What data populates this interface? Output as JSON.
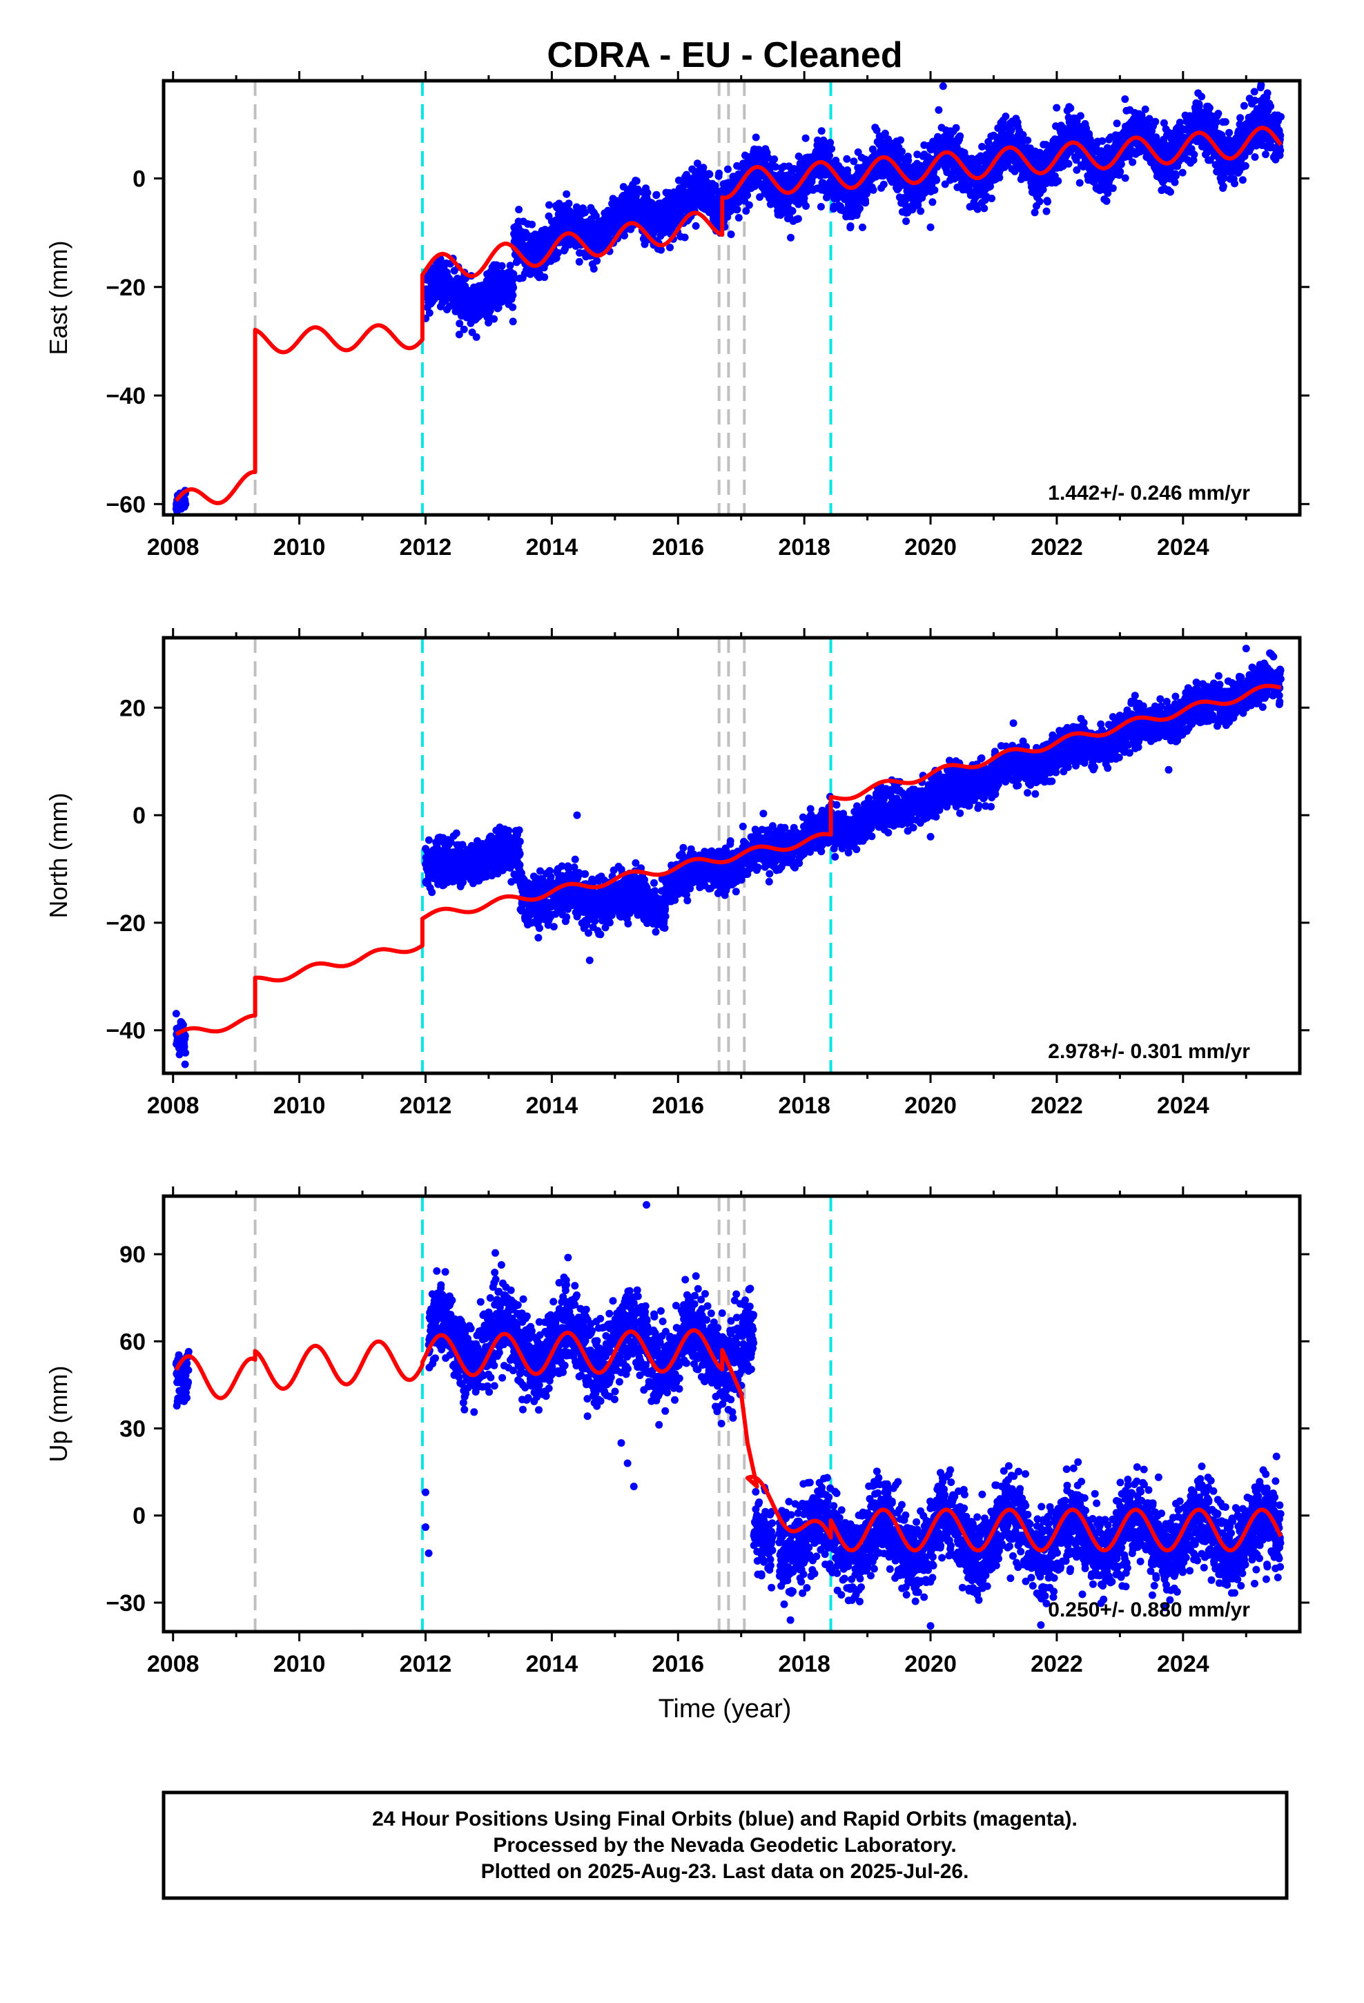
{
  "title": "CDRA  - EU - Cleaned",
  "xlabel": "Time (year)",
  "footer": [
    "24 Hour Positions Using Final Orbits (blue) and Rapid Orbits (magenta).",
    "Processed by the Nevada Geodetic Laboratory.",
    "Plotted on 2025-Aug-23. Last data on 2025-Jul-26."
  ],
  "colors": {
    "points": "#0000ff",
    "model": "#ff0000",
    "equipment_change": "#c0c0c0",
    "earthquake": "#00e5e5"
  },
  "chart_data": [
    {
      "type": "scatter",
      "ylabel": "East (mm)",
      "rate_label": "1.442+/- 0.246 mm/yr",
      "xlim": [
        2007.85,
        2025.85
      ],
      "ylim": [
        -62,
        18
      ],
      "xticks": [
        2008,
        2010,
        2012,
        2014,
        2016,
        2018,
        2020,
        2022,
        2024
      ],
      "yticks": [
        -60,
        -40,
        -20,
        0
      ],
      "grey_lines": [
        2009.3,
        2016.65,
        2016.8,
        2017.05
      ],
      "cyan_lines": [
        2011.95,
        2018.42
      ],
      "data_segments": [
        {
          "x0": 2008.05,
          "x1": 2008.2,
          "y0": -60,
          "y1": -59,
          "noise": 1.0,
          "amp": 0.5
        },
        {
          "x0": 2012.0,
          "x1": 2013.4,
          "y0": -21,
          "y1": -22,
          "noise": 2.0,
          "amp": 2.0
        },
        {
          "x0": 2013.4,
          "x1": 2016.7,
          "y0": -13,
          "y1": -3,
          "noise": 2.2,
          "amp": 2.0
        },
        {
          "x0": 2016.7,
          "x1": 2025.55,
          "y0": -2,
          "y1": 8,
          "noise": 2.4,
          "amp": 3.0
        }
      ],
      "model_segments": [
        {
          "x0": 2008.05,
          "x1": 2009.3,
          "y0": -60,
          "y1": -56,
          "amp": 2.0
        },
        {
          "x0": 2009.3,
          "x1": 2011.95,
          "y0": -30,
          "y1": -29,
          "amp": 2.2
        },
        {
          "x0": 2011.95,
          "x1": 2016.7,
          "y0": -17,
          "y1": -8,
          "amp": 2.5
        },
        {
          "x0": 2016.7,
          "x1": 2025.55,
          "y0": -1,
          "y1": 7,
          "amp": 2.6
        }
      ],
      "outliers": [
        [
          2020.2,
          17
        ],
        [
          2020.0,
          -9
        ],
        [
          2023.2,
          3
        ],
        [
          2016.4,
          2
        ]
      ]
    },
    {
      "type": "scatter",
      "ylabel": "North (mm)",
      "rate_label": "2.978+/- 0.301 mm/yr",
      "xlim": [
        2007.85,
        2025.85
      ],
      "ylim": [
        -48,
        33
      ],
      "xticks": [
        2008,
        2010,
        2012,
        2014,
        2016,
        2018,
        2020,
        2022,
        2024
      ],
      "yticks": [
        -40,
        -20,
        0,
        20
      ],
      "grey_lines": [
        2009.3,
        2016.65,
        2016.8,
        2017.05
      ],
      "cyan_lines": [
        2011.95,
        2018.42
      ],
      "data_segments": [
        {
          "x0": 2008.05,
          "x1": 2008.2,
          "y0": -41,
          "y1": -42,
          "noise": 2.0,
          "amp": 0.5
        },
        {
          "x0": 2012.0,
          "x1": 2013.5,
          "y0": -10,
          "y1": -7,
          "noise": 2.0,
          "amp": 1.0
        },
        {
          "x0": 2013.5,
          "x1": 2015.8,
          "y0": -15,
          "y1": -16,
          "noise": 2.3,
          "amp": 1.0
        },
        {
          "x0": 2015.8,
          "x1": 2025.55,
          "y0": -13,
          "y1": 25,
          "noise": 1.8,
          "amp": 1.0
        }
      ],
      "model_segments": [
        {
          "x0": 2008.05,
          "x1": 2009.3,
          "y0": -41,
          "y1": -38,
          "amp": 0.8
        },
        {
          "x0": 2009.3,
          "x1": 2011.95,
          "y0": -31,
          "y1": -24,
          "amp": 0.8
        },
        {
          "x0": 2011.95,
          "x1": 2018.42,
          "y0": -19,
          "y1": -4,
          "amp": 0.8
        },
        {
          "x0": 2018.42,
          "x1": 2025.55,
          "y0": 3,
          "y1": 24,
          "amp": 0.8
        }
      ],
      "outliers": [
        [
          2014.4,
          0
        ],
        [
          2014.6,
          -27
        ],
        [
          2017.5,
          -2
        ],
        [
          2020.0,
          -4
        ],
        [
          2025.0,
          31
        ]
      ]
    },
    {
      "type": "scatter",
      "ylabel": "Up (mm)",
      "rate_label": "0.250+/- 0.880 mm/yr",
      "xlim": [
        2007.85,
        2025.85
      ],
      "ylim": [
        -40,
        110
      ],
      "xticks": [
        2008,
        2010,
        2012,
        2014,
        2016,
        2018,
        2020,
        2022,
        2024
      ],
      "yticks": [
        -30,
        0,
        30,
        60,
        90
      ],
      "grey_lines": [
        2009.3,
        2016.65,
        2016.8,
        2017.05
      ],
      "cyan_lines": [
        2011.95,
        2018.42
      ],
      "data_segments": [
        {
          "x0": 2008.05,
          "x1": 2008.25,
          "y0": 48,
          "y1": 48,
          "noise": 4.0,
          "amp": 0.0
        },
        {
          "x0": 2012.05,
          "x1": 2017.2,
          "y0": 60,
          "y1": 57,
          "noise": 7.0,
          "amp": 7.0
        },
        {
          "x0": 2017.2,
          "x1": 2017.5,
          "y0": -5,
          "y1": -8,
          "noise": 6.0,
          "amp": 0.0
        },
        {
          "x0": 2017.6,
          "x1": 2025.55,
          "y0": -8,
          "y1": -7,
          "noise": 7.0,
          "amp": 7.0
        }
      ],
      "model_segments": [
        {
          "x0": 2008.05,
          "x1": 2009.3,
          "y0": 48,
          "y1": 47,
          "amp": 7.0
        },
        {
          "x0": 2009.3,
          "x1": 2011.95,
          "y0": 50,
          "y1": 54,
          "amp": 7.0
        },
        {
          "x0": 2011.95,
          "x1": 2016.7,
          "y0": 55,
          "y1": 57,
          "amp": 7.0
        },
        {
          "x0": 2017.1,
          "x1": 2018.42,
          "y0": 10,
          "y1": -10,
          "amp": 5.0
        },
        {
          "x0": 2018.42,
          "x1": 2025.55,
          "y0": -5,
          "y1": -5,
          "amp": 7.0
        }
      ],
      "model_bridges": [
        [
          2016.7,
          57
        ],
        [
          2017.0,
          42
        ],
        [
          2017.1,
          25
        ],
        [
          2017.25,
          10
        ]
      ],
      "outliers": [
        [
          2015.5,
          107
        ],
        [
          2012.05,
          -13
        ],
        [
          2012.0,
          -4
        ],
        [
          2012.0,
          8
        ],
        [
          2020.0,
          -38
        ],
        [
          2015.2,
          18
        ],
        [
          2015.3,
          10
        ],
        [
          2015.1,
          25
        ]
      ]
    }
  ]
}
